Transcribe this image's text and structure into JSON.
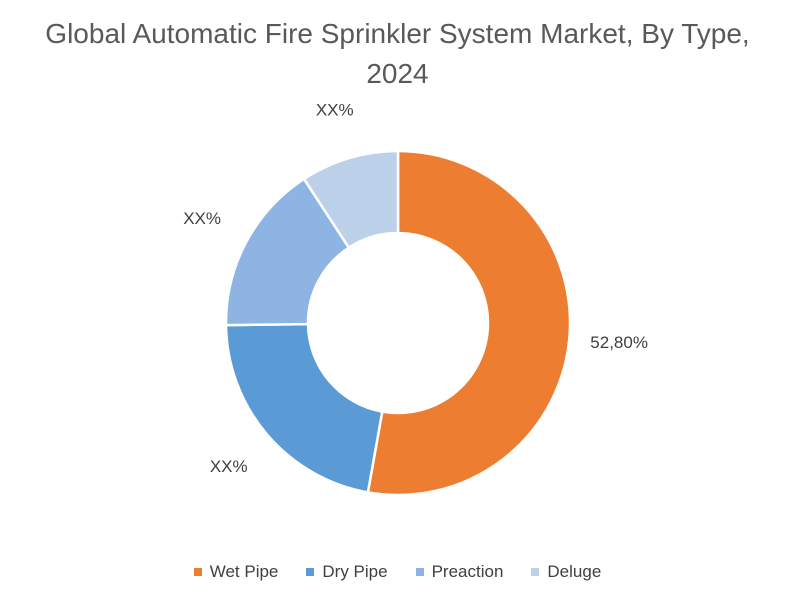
{
  "chart_data": {
    "type": "pie",
    "donut": true,
    "title": "Global Automatic Fire Sprinkler System Market, By Type, 2024",
    "categories": [
      "Wet Pipe",
      "Dry Pipe",
      "Preaction",
      "Deluge"
    ],
    "values": [
      52.8,
      22.0,
      16.0,
      9.2
    ],
    "data_labels": [
      "52,80%",
      "XX%",
      "XX%",
      "XX%"
    ],
    "colors": [
      "#ED7D31",
      "#5B9BD5",
      "#8EB4E3",
      "#BDD0EA"
    ],
    "legend_placement": "bottom"
  }
}
